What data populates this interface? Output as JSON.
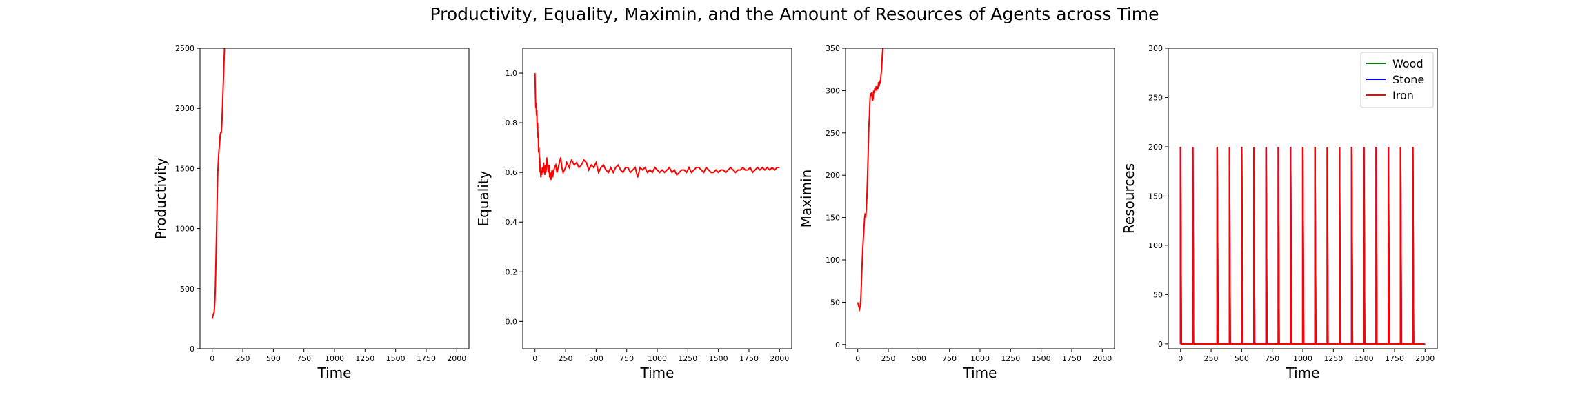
{
  "figure": {
    "title": "Productivity, Equality, Maximin, and the Amount of Resources of Agents across Time"
  },
  "colors": {
    "line": "#ff0000",
    "axis": "#000000",
    "wood": "#008000",
    "stone": "#0000ff",
    "iron": "#ff0000"
  },
  "chart_data": [
    {
      "type": "line",
      "title": "",
      "xlabel": "Time",
      "ylabel": "Productivity",
      "xlim": [
        -100,
        2100
      ],
      "ylim": [
        0,
        2500
      ],
      "xticks": [
        0,
        250,
        500,
        750,
        1000,
        1250,
        1500,
        1750,
        2000
      ],
      "yticks": [
        0,
        500,
        1000,
        1500,
        2000,
        2500
      ],
      "grid": false,
      "series": [
        {
          "color": "#ff0000",
          "x": [
            0,
            5,
            10,
            15,
            18,
            22,
            26,
            30,
            35,
            40,
            45,
            50,
            55,
            60,
            65,
            70,
            75,
            80,
            85,
            90,
            95,
            100,
            105,
            110,
            115
          ],
          "y": [
            250,
            270,
            290,
            300,
            330,
            400,
            520,
            700,
            950,
            1200,
            1450,
            1560,
            1650,
            1700,
            1780,
            1800,
            1800,
            1900,
            2050,
            2200,
            2350,
            2500,
            2600,
            2700,
            2800
          ]
        }
      ]
    },
    {
      "type": "line",
      "title": "",
      "xlabel": "Time",
      "ylabel": "Equality",
      "xlim": [
        -100,
        2100
      ],
      "ylim": [
        -0.11,
        1.1
      ],
      "xticks": [
        0,
        250,
        500,
        750,
        1000,
        1250,
        1500,
        1750,
        2000
      ],
      "yticks": [
        0.0,
        0.2,
        0.4,
        0.6,
        0.8,
        1.0
      ],
      "grid": false,
      "series": [
        {
          "color": "#ff0000",
          "x": [
            0,
            3,
            6,
            9,
            12,
            15,
            18,
            21,
            24,
            27,
            30,
            33,
            36,
            39,
            42,
            45,
            48,
            51,
            55,
            60,
            65,
            70,
            75,
            80,
            85,
            90,
            95,
            100,
            105,
            110,
            115,
            120,
            125,
            130,
            135,
            140,
            145,
            150,
            160,
            170,
            180,
            190,
            200,
            210,
            220,
            230,
            240,
            250,
            260,
            270,
            280,
            290,
            300,
            320,
            340,
            360,
            380,
            400,
            420,
            440,
            460,
            480,
            500,
            520,
            540,
            560,
            580,
            600,
            620,
            640,
            660,
            680,
            700,
            720,
            740,
            760,
            780,
            800,
            820,
            840,
            860,
            880,
            900,
            920,
            940,
            960,
            980,
            1000,
            1020,
            1040,
            1060,
            1080,
            1100,
            1120,
            1140,
            1160,
            1180,
            1200,
            1220,
            1240,
            1260,
            1280,
            1300,
            1320,
            1340,
            1360,
            1380,
            1400,
            1420,
            1440,
            1460,
            1480,
            1500,
            1520,
            1540,
            1560,
            1580,
            1600,
            1620,
            1640,
            1660,
            1680,
            1700,
            1720,
            1740,
            1760,
            1780,
            1800,
            1820,
            1840,
            1860,
            1880,
            1900,
            1920,
            1940,
            1960,
            1980,
            2000
          ],
          "y": [
            1.0,
            0.92,
            0.86,
            0.88,
            0.83,
            0.85,
            0.78,
            0.8,
            0.74,
            0.76,
            0.68,
            0.7,
            0.64,
            0.66,
            0.6,
            0.62,
            0.58,
            0.6,
            0.59,
            0.62,
            0.6,
            0.64,
            0.61,
            0.59,
            0.63,
            0.6,
            0.66,
            0.64,
            0.62,
            0.6,
            0.63,
            0.58,
            0.6,
            0.57,
            0.59,
            0.61,
            0.58,
            0.6,
            0.62,
            0.63,
            0.6,
            0.62,
            0.64,
            0.66,
            0.62,
            0.6,
            0.61,
            0.62,
            0.64,
            0.63,
            0.62,
            0.64,
            0.65,
            0.63,
            0.64,
            0.62,
            0.63,
            0.65,
            0.64,
            0.61,
            0.63,
            0.62,
            0.64,
            0.6,
            0.62,
            0.63,
            0.61,
            0.6,
            0.62,
            0.6,
            0.62,
            0.63,
            0.61,
            0.6,
            0.62,
            0.62,
            0.6,
            0.61,
            0.62,
            0.58,
            0.62,
            0.61,
            0.62,
            0.6,
            0.61,
            0.6,
            0.62,
            0.61,
            0.6,
            0.61,
            0.6,
            0.61,
            0.62,
            0.6,
            0.61,
            0.59,
            0.6,
            0.61,
            0.61,
            0.6,
            0.62,
            0.6,
            0.61,
            0.62,
            0.62,
            0.61,
            0.6,
            0.62,
            0.61,
            0.6,
            0.6,
            0.61,
            0.6,
            0.61,
            0.61,
            0.6,
            0.61,
            0.62,
            0.61,
            0.6,
            0.61,
            0.61,
            0.62,
            0.61,
            0.61,
            0.62,
            0.6,
            0.61,
            0.62,
            0.61,
            0.62,
            0.61,
            0.62,
            0.61,
            0.62,
            0.61,
            0.62,
            0.62
          ]
        }
      ]
    },
    {
      "type": "line",
      "title": "",
      "xlabel": "Time",
      "ylabel": "Maximin",
      "xlim": [
        -100,
        2100
      ],
      "ylim": [
        -5,
        350
      ],
      "xticks": [
        0,
        250,
        500,
        750,
        1000,
        1250,
        1500,
        1750,
        2000
      ],
      "yticks": [
        0,
        50,
        100,
        150,
        200,
        250,
        300,
        350
      ],
      "grid": false,
      "series": [
        {
          "color": "#ff0000",
          "x": [
            0,
            5,
            10,
            15,
            20,
            25,
            30,
            35,
            40,
            45,
            50,
            55,
            60,
            65,
            70,
            75,
            80,
            85,
            90,
            95,
            100,
            105,
            110,
            115,
            120,
            125,
            130,
            135,
            140,
            145,
            150,
            155,
            160,
            165,
            170,
            175,
            180,
            185,
            190,
            195,
            200,
            205,
            210,
            215,
            220
          ],
          "y": [
            50,
            47,
            44,
            42,
            46,
            55,
            72,
            92,
            110,
            124,
            135,
            148,
            155,
            150,
            160,
            175,
            200,
            225,
            255,
            270,
            290,
            297,
            293,
            298,
            288,
            290,
            300,
            297,
            303,
            300,
            305,
            300,
            305,
            302,
            310,
            305,
            312,
            308,
            318,
            325,
            340,
            350,
            355,
            360,
            370
          ]
        }
      ]
    },
    {
      "type": "line",
      "title": "",
      "xlabel": "Time",
      "ylabel": "Resources",
      "xlim": [
        -100,
        2100
      ],
      "ylim": [
        -5,
        300
      ],
      "xticks": [
        0,
        250,
        500,
        750,
        1000,
        1250,
        1500,
        1750,
        2000
      ],
      "yticks": [
        0,
        50,
        100,
        150,
        200,
        250,
        300
      ],
      "legend": "top-right",
      "grid": false,
      "spike_times": [
        0,
        100,
        300,
        400,
        500,
        600,
        700,
        800,
        900,
        1000,
        1100,
        1200,
        1300,
        1400,
        1500,
        1600,
        1700,
        1800,
        1900
      ],
      "spike_value": 200,
      "series": [
        {
          "name": "Wood",
          "color": "#008000",
          "baseline": 0,
          "x_end": 2000
        },
        {
          "name": "Stone",
          "color": "#0000ff",
          "baseline": 0,
          "x_end": 2000
        },
        {
          "name": "Iron",
          "color": "#ff0000",
          "baseline": 0,
          "x_end": 2000
        }
      ]
    }
  ]
}
